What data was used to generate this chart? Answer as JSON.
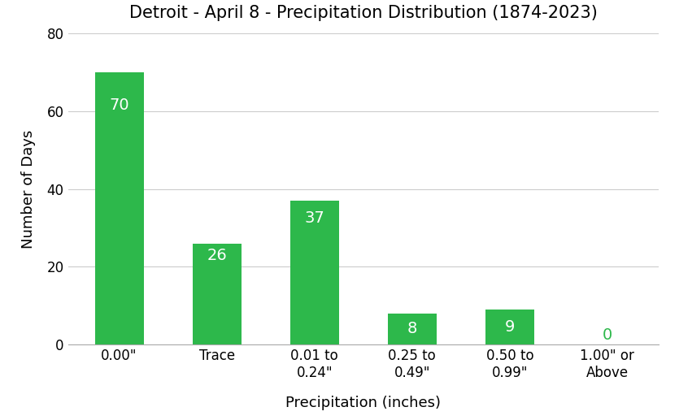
{
  "title": "Detroit - April 8 - Precipitation Distribution (1874-2023)",
  "xlabel": "Precipitation (inches)",
  "ylabel": "Number of Days",
  "categories": [
    "0.00\"",
    "Trace",
    "0.01 to\n0.24\"",
    "0.25 to\n0.49\"",
    "0.50 to\n0.99\"",
    "1.00\" or\nAbove"
  ],
  "values": [
    70,
    26,
    37,
    8,
    9,
    0
  ],
  "bar_color": "#2db84b",
  "label_color_default": "#ffffff",
  "label_color_zero": "#2db84b",
  "ylim": [
    0,
    80
  ],
  "yticks": [
    0,
    20,
    40,
    60,
    80
  ],
  "title_fontsize": 15,
  "axis_label_fontsize": 13,
  "tick_fontsize": 12,
  "bar_label_fontsize": 14,
  "grid_color": "#cccccc",
  "background_color": "#ffffff",
  "bar_width": 0.5
}
